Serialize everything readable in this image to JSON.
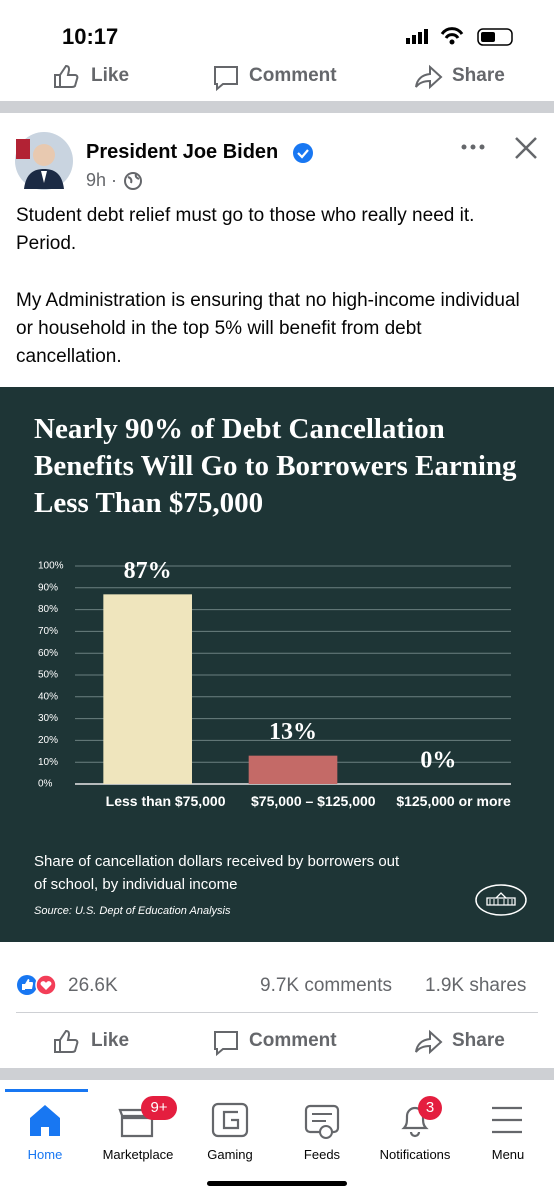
{
  "status_bar": {
    "time": "10:17"
  },
  "top_actions": {
    "like": "Like",
    "comment": "Comment",
    "share": "Share"
  },
  "post": {
    "author": "President Joe Biden",
    "time": "9h ·",
    "paragraphs": [
      "Student debt relief must go to those who really need it. Period.",
      "My Administration is ensuring that no high-income individual or household in the top 5% will benefit from debt cancellation."
    ]
  },
  "chart_data": {
    "type": "bar",
    "title": "Nearly 90% of Debt Cancellation Benefits Will Go to Borrowers Earning Less Than $75,000",
    "categories": [
      "Less than $75,000",
      "$75,000 – $125,000",
      "$125,000 or more"
    ],
    "values": [
      87,
      13,
      0
    ],
    "value_labels": [
      "87%",
      "13%",
      "0%"
    ],
    "colors": [
      "#efe5bd",
      "#c46a67",
      "#c46a67"
    ],
    "ylim": [
      0,
      100
    ],
    "yticks": [
      {
        "value": 0,
        "label": "0%"
      },
      {
        "value": 10,
        "label": "10%"
      },
      {
        "value": 20,
        "label": "20%"
      },
      {
        "value": 30,
        "label": "30%"
      },
      {
        "value": 40,
        "label": "40%"
      },
      {
        "value": 50,
        "label": "50%"
      },
      {
        "value": 60,
        "label": "60%"
      },
      {
        "value": 70,
        "label": "70%"
      },
      {
        "value": 80,
        "label": "80%"
      },
      {
        "value": 90,
        "label": "90%"
      },
      {
        "value": 100,
        "label": "100%"
      }
    ],
    "grid": true,
    "caption": "Share of cancellation dollars received by borrowers out of school, by individual income",
    "source": "Source: U.S. Dept of Education Analysis"
  },
  "engagement": {
    "reactions": "26.6K",
    "comments": "9.7K comments",
    "shares": "1.9K shares"
  },
  "bottom_actions": {
    "like": "Like",
    "comment": "Comment",
    "share": "Share"
  },
  "nav": {
    "items": [
      "Home",
      "Marketplace",
      "Gaming",
      "Feeds",
      "Notifications",
      "Menu"
    ],
    "marketplace_badge": "9+",
    "notifications_badge": "3"
  }
}
